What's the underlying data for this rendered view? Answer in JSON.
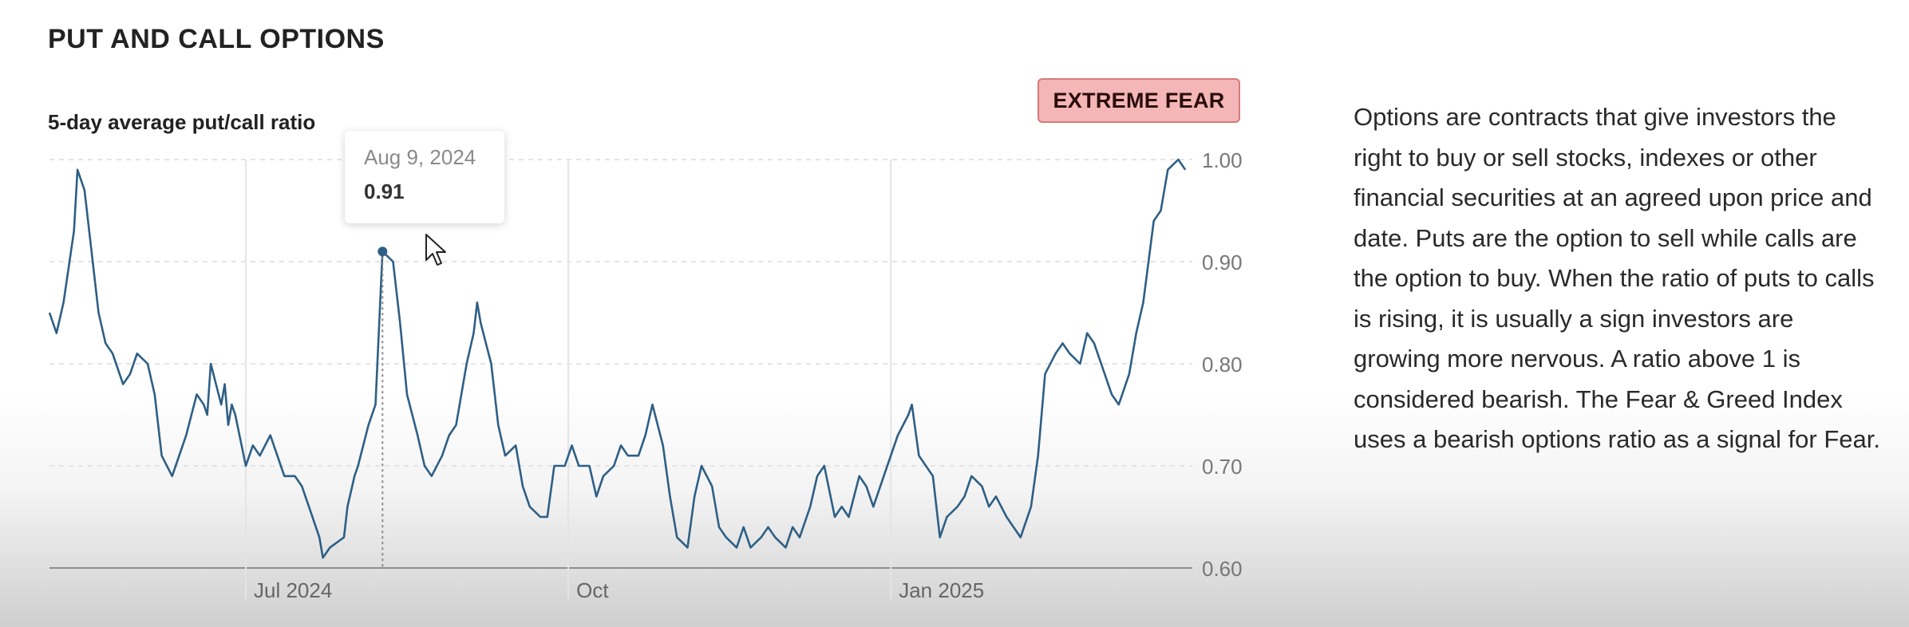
{
  "section_title": "PUT AND CALL OPTIONS",
  "badge_label": "EXTREME FEAR",
  "description": "Options are contracts that give investors the right to buy or sell stocks, indexes or other financial securities at an agreed upon price and date. Puts are the option to sell while calls are the option to buy. When the ratio of puts to calls is rising, it is usually a sign investors are growing more nervous. A ratio above 1 is considered bearish. The Fear & Greed Index uses a bearish options ratio as a signal for Fear.",
  "tooltip": {
    "date": "Aug 9, 2024",
    "value": "0.91"
  },
  "colors": {
    "line": "#2e5f85",
    "badge_bg": "#f4b6b6",
    "badge_border": "#d47a7a",
    "grid": "#e4e4e4",
    "baseline": "#8f8f8f"
  },
  "chart_data": {
    "type": "line",
    "title": "5-day average put/call ratio",
    "xlabel": "",
    "ylabel": "",
    "ylim": [
      0.6,
      1.0
    ],
    "yticks": [
      0.6,
      0.7,
      0.8,
      0.9,
      1.0
    ],
    "ytick_labels": [
      "0.60",
      "0.70",
      "0.80",
      "0.90",
      "1.00"
    ],
    "xlim": [
      "2024-05-06",
      "2025-03-28"
    ],
    "xticks": [
      {
        "date": "2024-07-01",
        "label": "Jul 2024"
      },
      {
        "date": "2024-10-01",
        "label": "Oct"
      },
      {
        "date": "2025-01-01",
        "label": "Jan 2025"
      }
    ],
    "grid": true,
    "y_axis_side": "right",
    "highlight": {
      "date": "2024-08-09",
      "value": 0.91
    },
    "series": [
      {
        "name": "",
        "points": [
          [
            "2024-05-06",
            0.85
          ],
          [
            "2024-05-08",
            0.83
          ],
          [
            "2024-05-10",
            0.86
          ],
          [
            "2024-05-13",
            0.93
          ],
          [
            "2024-05-14",
            0.99
          ],
          [
            "2024-05-16",
            0.97
          ],
          [
            "2024-05-20",
            0.85
          ],
          [
            "2024-05-22",
            0.82
          ],
          [
            "2024-05-24",
            0.81
          ],
          [
            "2024-05-27",
            0.78
          ],
          [
            "2024-05-29",
            0.79
          ],
          [
            "2024-05-31",
            0.81
          ],
          [
            "2024-06-03",
            0.8
          ],
          [
            "2024-06-05",
            0.77
          ],
          [
            "2024-06-07",
            0.71
          ],
          [
            "2024-06-10",
            0.69
          ],
          [
            "2024-06-12",
            0.71
          ],
          [
            "2024-06-14",
            0.73
          ],
          [
            "2024-06-17",
            0.77
          ],
          [
            "2024-06-19",
            0.76
          ],
          [
            "2024-06-20",
            0.75
          ],
          [
            "2024-06-21",
            0.8
          ],
          [
            "2024-06-24",
            0.76
          ],
          [
            "2024-06-25",
            0.78
          ],
          [
            "2024-06-26",
            0.74
          ],
          [
            "2024-06-27",
            0.76
          ],
          [
            "2024-06-28",
            0.75
          ],
          [
            "2024-07-01",
            0.7
          ],
          [
            "2024-07-03",
            0.72
          ],
          [
            "2024-07-05",
            0.71
          ],
          [
            "2024-07-08",
            0.73
          ],
          [
            "2024-07-10",
            0.71
          ],
          [
            "2024-07-12",
            0.69
          ],
          [
            "2024-07-15",
            0.69
          ],
          [
            "2024-07-17",
            0.68
          ],
          [
            "2024-07-19",
            0.66
          ],
          [
            "2024-07-22",
            0.63
          ],
          [
            "2024-07-23",
            0.61
          ],
          [
            "2024-07-25",
            0.62
          ],
          [
            "2024-07-29",
            0.63
          ],
          [
            "2024-07-30",
            0.66
          ],
          [
            "2024-08-01",
            0.69
          ],
          [
            "2024-08-02",
            0.7
          ],
          [
            "2024-08-05",
            0.74
          ],
          [
            "2024-08-07",
            0.76
          ],
          [
            "2024-08-09",
            0.91
          ],
          [
            "2024-08-12",
            0.9
          ],
          [
            "2024-08-14",
            0.84
          ],
          [
            "2024-08-16",
            0.77
          ],
          [
            "2024-08-19",
            0.73
          ],
          [
            "2024-08-21",
            0.7
          ],
          [
            "2024-08-23",
            0.69
          ],
          [
            "2024-08-26",
            0.71
          ],
          [
            "2024-08-28",
            0.73
          ],
          [
            "2024-08-30",
            0.74
          ],
          [
            "2024-09-02",
            0.8
          ],
          [
            "2024-09-04",
            0.83
          ],
          [
            "2024-09-05",
            0.86
          ],
          [
            "2024-09-06",
            0.84
          ],
          [
            "2024-09-09",
            0.8
          ],
          [
            "2024-09-11",
            0.74
          ],
          [
            "2024-09-13",
            0.71
          ],
          [
            "2024-09-16",
            0.72
          ],
          [
            "2024-09-18",
            0.68
          ],
          [
            "2024-09-20",
            0.66
          ],
          [
            "2024-09-23",
            0.65
          ],
          [
            "2024-09-25",
            0.65
          ],
          [
            "2024-09-27",
            0.7
          ],
          [
            "2024-09-30",
            0.7
          ],
          [
            "2024-10-02",
            0.72
          ],
          [
            "2024-10-04",
            0.7
          ],
          [
            "2024-10-07",
            0.7
          ],
          [
            "2024-10-09",
            0.67
          ],
          [
            "2024-10-11",
            0.69
          ],
          [
            "2024-10-14",
            0.7
          ],
          [
            "2024-10-16",
            0.72
          ],
          [
            "2024-10-18",
            0.71
          ],
          [
            "2024-10-21",
            0.71
          ],
          [
            "2024-10-23",
            0.73
          ],
          [
            "2024-10-25",
            0.76
          ],
          [
            "2024-10-28",
            0.72
          ],
          [
            "2024-10-30",
            0.67
          ],
          [
            "2024-11-01",
            0.63
          ],
          [
            "2024-11-04",
            0.62
          ],
          [
            "2024-11-06",
            0.67
          ],
          [
            "2024-11-08",
            0.7
          ],
          [
            "2024-11-11",
            0.68
          ],
          [
            "2024-11-13",
            0.64
          ],
          [
            "2024-11-15",
            0.63
          ],
          [
            "2024-11-18",
            0.62
          ],
          [
            "2024-11-20",
            0.64
          ],
          [
            "2024-11-22",
            0.62
          ],
          [
            "2024-11-25",
            0.63
          ],
          [
            "2024-11-27",
            0.64
          ],
          [
            "2024-11-29",
            0.63
          ],
          [
            "2024-12-02",
            0.62
          ],
          [
            "2024-12-04",
            0.64
          ],
          [
            "2024-12-06",
            0.63
          ],
          [
            "2024-12-09",
            0.66
          ],
          [
            "2024-12-11",
            0.69
          ],
          [
            "2024-12-13",
            0.7
          ],
          [
            "2024-12-16",
            0.65
          ],
          [
            "2024-12-18",
            0.66
          ],
          [
            "2024-12-20",
            0.65
          ],
          [
            "2024-12-23",
            0.69
          ],
          [
            "2024-12-25",
            0.68
          ],
          [
            "2024-12-27",
            0.66
          ],
          [
            "2024-12-30",
            0.69
          ],
          [
            "2025-01-01",
            0.71
          ],
          [
            "2025-01-03",
            0.73
          ],
          [
            "2025-01-06",
            0.75
          ],
          [
            "2025-01-07",
            0.76
          ],
          [
            "2025-01-09",
            0.71
          ],
          [
            "2025-01-13",
            0.69
          ],
          [
            "2025-01-15",
            0.63
          ],
          [
            "2025-01-17",
            0.65
          ],
          [
            "2025-01-20",
            0.66
          ],
          [
            "2025-01-22",
            0.67
          ],
          [
            "2025-01-24",
            0.69
          ],
          [
            "2025-01-27",
            0.68
          ],
          [
            "2025-01-29",
            0.66
          ],
          [
            "2025-01-31",
            0.67
          ],
          [
            "2025-02-03",
            0.65
          ],
          [
            "2025-02-05",
            0.64
          ],
          [
            "2025-02-07",
            0.63
          ],
          [
            "2025-02-10",
            0.66
          ],
          [
            "2025-02-12",
            0.71
          ],
          [
            "2025-02-14",
            0.79
          ],
          [
            "2025-02-17",
            0.81
          ],
          [
            "2025-02-19",
            0.82
          ],
          [
            "2025-02-21",
            0.81
          ],
          [
            "2025-02-24",
            0.8
          ],
          [
            "2025-02-26",
            0.83
          ],
          [
            "2025-02-28",
            0.82
          ],
          [
            "2025-03-03",
            0.79
          ],
          [
            "2025-03-05",
            0.77
          ],
          [
            "2025-03-07",
            0.76
          ],
          [
            "2025-03-10",
            0.79
          ],
          [
            "2025-03-12",
            0.83
          ],
          [
            "2025-03-14",
            0.86
          ],
          [
            "2025-03-17",
            0.94
          ],
          [
            "2025-03-19",
            0.95
          ],
          [
            "2025-03-21",
            0.99
          ],
          [
            "2025-03-24",
            1.0
          ],
          [
            "2025-03-26",
            0.99
          ]
        ]
      }
    ]
  }
}
